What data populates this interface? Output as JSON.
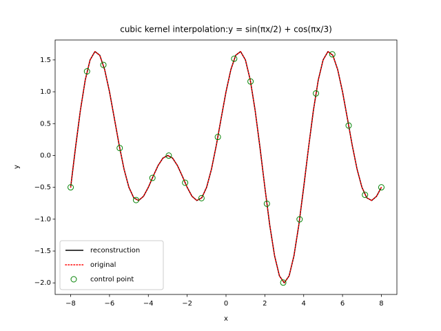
{
  "chart_data": {
    "type": "line",
    "title": "cubic kernel interpolation:y = sin(πx/2) + cos(πx/3)",
    "x_label": "x",
    "y_label": "y",
    "xlim": [
      -8.8,
      8.8
    ],
    "ylim": [
      -2.1816,
      1.8126
    ],
    "xticks": [
      {
        "value": -8,
        "label": "−8"
      },
      {
        "value": -6,
        "label": "−6"
      },
      {
        "value": -4,
        "label": "−4"
      },
      {
        "value": -2,
        "label": "−2"
      },
      0,
      2,
      4,
      6,
      8
    ],
    "yticks": [
      {
        "value": -2,
        "label": "−2.0"
      },
      {
        "value": -1.5,
        "label": "−1.5"
      },
      {
        "value": -1,
        "label": "−1.0"
      },
      {
        "value": -0.5,
        "label": "−0.5"
      },
      {
        "value": 0,
        "label": "0.0"
      },
      {
        "value": 0.5,
        "label": "0.5"
      },
      {
        "value": 1,
        "label": "1.0"
      },
      {
        "value": 1.5,
        "label": "1.5"
      }
    ],
    "legend": "lower left",
    "x": [
      -8,
      -7.75,
      -7.5,
      -7.25,
      -7,
      -6.75,
      -6.5,
      -6.25,
      -6,
      -5.75,
      -5.5,
      -5.25,
      -5,
      -4.75,
      -4.5,
      -4.25,
      -4,
      -3.75,
      -3.5,
      -3.25,
      -3,
      -2.75,
      -2.5,
      -2.25,
      -2,
      -1.75,
      -1.5,
      -1.25,
      -1,
      -0.75,
      -0.5,
      -0.25,
      0,
      0.25,
      0.5,
      0.75,
      1,
      1.25,
      1.5,
      1.75,
      2,
      2.25,
      2.5,
      2.75,
      3,
      3.25,
      3.5,
      3.75,
      4,
      4.25,
      4.5,
      4.75,
      5,
      5.25,
      5.5,
      5.75,
      6,
      6.25,
      6.5,
      6.75,
      7,
      7.25,
      7.5,
      7.75,
      8
    ],
    "series": [
      {
        "name": "reconstruction",
        "type": "line",
        "linestyle": "solid",
        "color": "#000000",
        "values": [
          -0.5,
          0.1239,
          0.7071,
          1.1827,
          1.5,
          1.631,
          1.5731,
          1.3486,
          1,
          0.5832,
          0.1589,
          -0.2168,
          -0.5,
          -0.6651,
          -0.7071,
          -0.6415,
          -0.5,
          -0.3244,
          -0.1589,
          -0.042,
          0,
          -0.042,
          -0.1589,
          -0.3244,
          -0.5,
          -0.6415,
          -0.7071,
          -0.6651,
          -0.5,
          -0.2168,
          0.1589,
          0.5832,
          1,
          1.3486,
          1.5731,
          1.631,
          1.5,
          1.1827,
          0.7071,
          0.1239,
          -0.5,
          -1.0898,
          -1.5731,
          -1.8898,
          -2,
          -1.8898,
          -1.5731,
          -1.0898,
          -0.5,
          0.1239,
          0.7071,
          1.1827,
          1.5,
          1.631,
          1.5731,
          1.3486,
          1,
          0.5832,
          0.1589,
          -0.2168,
          -0.5,
          -0.6651,
          -0.7071,
          -0.6415,
          -0.5
        ]
      },
      {
        "name": "original",
        "type": "line",
        "linestyle": "dotted",
        "color": "#ff0000",
        "values": [
          -0.5,
          0.1239,
          0.7071,
          1.1827,
          1.5,
          1.631,
          1.5731,
          1.3486,
          1,
          0.5832,
          0.1589,
          -0.2168,
          -0.5,
          -0.6651,
          -0.7071,
          -0.6415,
          -0.5,
          -0.3244,
          -0.1589,
          -0.042,
          0,
          -0.042,
          -0.1589,
          -0.3244,
          -0.5,
          -0.6415,
          -0.7071,
          -0.6651,
          -0.5,
          -0.2168,
          0.1589,
          0.5832,
          1,
          1.3486,
          1.5731,
          1.631,
          1.5,
          1.1827,
          0.7071,
          0.1239,
          -0.5,
          -1.0898,
          -1.5731,
          -1.8898,
          -2,
          -1.8898,
          -1.5731,
          -1.0898,
          -0.5,
          0.1239,
          0.7071,
          1.1827,
          1.5,
          1.631,
          1.5731,
          1.3486,
          1,
          0.5832,
          0.1589,
          -0.2168,
          -0.5,
          -0.6651,
          -0.7071,
          -0.6415,
          -0.5
        ]
      },
      {
        "name": "control point",
        "type": "scatter",
        "color": "#008000",
        "x": [
          -8,
          -7.1579,
          -6.3158,
          -5.4737,
          -4.6316,
          -3.7895,
          -2.9474,
          -2.1053,
          -1.2632,
          -0.4211,
          0.4211,
          1.2632,
          2.1053,
          2.9474,
          3.7895,
          4.6316,
          5.4737,
          6.3158,
          7.1579,
          8
        ],
        "values": [
          -0.5,
          1.3201,
          1.4217,
          0.1162,
          -0.6999,
          -0.3526,
          -0.0019,
          -0.4277,
          -0.6703,
          0.2902,
          1.5186,
          1.1613,
          -0.7569,
          -1.9951,
          -1.002,
          0.9745,
          1.5876,
          0.4699,
          -0.6187,
          -0.5
        ]
      }
    ]
  }
}
